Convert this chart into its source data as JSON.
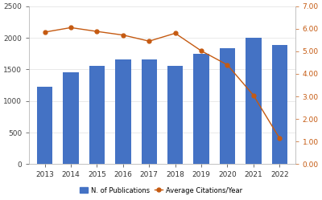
{
  "years": [
    2013,
    2014,
    2015,
    2016,
    2017,
    2018,
    2019,
    2020,
    2021,
    2022
  ],
  "publications": [
    1230,
    1460,
    1560,
    1660,
    1660,
    1560,
    1750,
    1840,
    2000,
    1880
  ],
  "citations": [
    5.85,
    6.05,
    5.88,
    5.72,
    5.45,
    5.8,
    5.02,
    4.4,
    3.05,
    1.15
  ],
  "bar_color": "#4472C4",
  "line_color": "#C55A11",
  "ylim_left": [
    0,
    2500
  ],
  "ylim_right": [
    0.0,
    7.0
  ],
  "yticks_left": [
    0,
    500,
    1000,
    1500,
    2000,
    2500
  ],
  "yticks_right": [
    0.0,
    1.0,
    2.0,
    3.0,
    4.0,
    5.0,
    6.0,
    7.0
  ],
  "ytick_labels_right": [
    "0.00",
    "1.00",
    "2.00",
    "3.00",
    "4.00",
    "5.00",
    "6.00",
    "7.00"
  ],
  "legend_pub_label": "N. of Publications",
  "legend_cit_label": "Average Citations/Year",
  "bar_width": 0.6,
  "bg_color": "#ffffff",
  "grid_color": "#e0e0e0",
  "right_tick_color": "#C55A11",
  "left_tick_color": "#404040",
  "spine_color": "#aaaaaa"
}
